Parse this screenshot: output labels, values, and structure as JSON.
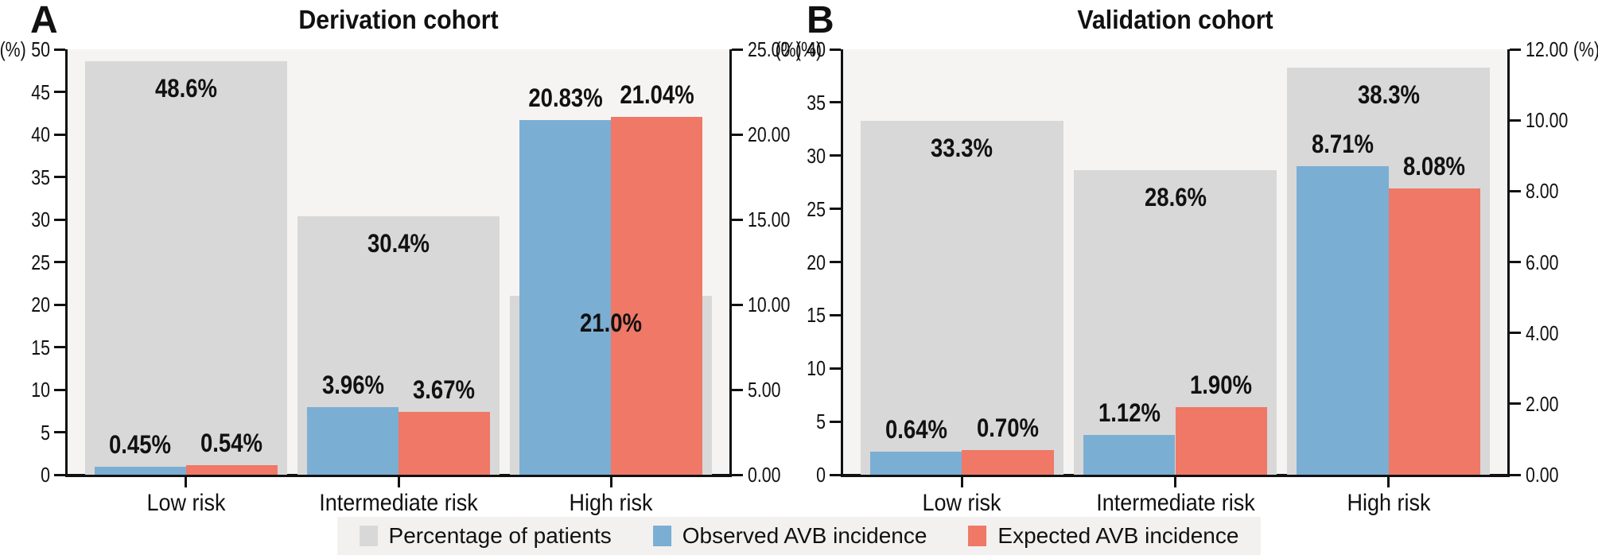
{
  "figure": {
    "colors": {
      "patients": "#d8d8d8",
      "observed": "#7baed3",
      "expected": "#ef7866",
      "plot_bg": "#f5f4f3",
      "legend_bg": "#f2f1f0",
      "axis": "#111111",
      "text": "#111111"
    },
    "legend": [
      {
        "key": "patients",
        "label": "Percentage of patients"
      },
      {
        "key": "observed",
        "label": "Observed AVB incidence"
      },
      {
        "key": "expected",
        "label": "Expected AVB incidence"
      }
    ],
    "legend_position": "bottom-center"
  },
  "chart_data": [
    {
      "type": "bar",
      "panel_label": "A",
      "title": "Derivation cohort",
      "categories": [
        "Low risk",
        "Intermediate risk",
        "High risk"
      ],
      "grid": false,
      "left_axis": {
        "label": "(%)",
        "min": 0,
        "max": 50,
        "step": 5,
        "tick_labels": [
          "0",
          "5",
          "10",
          "15",
          "20",
          "25",
          "30",
          "35",
          "40",
          "45",
          "50"
        ]
      },
      "right_axis": {
        "label": "(%)",
        "min": 0,
        "max": 25,
        "step": 5,
        "tick_labels": [
          "0.00",
          "5.00",
          "10.00",
          "15.00",
          "20.00",
          "25.00"
        ]
      },
      "series": [
        {
          "key": "patients",
          "name": "Percentage of patients",
          "axis": "left",
          "values": [
            48.6,
            30.4,
            21.0
          ],
          "labels": [
            "48.6%",
            "30.4%",
            "21.0%"
          ]
        },
        {
          "key": "observed",
          "name": "Observed AVB incidence",
          "axis": "right",
          "values": [
            0.45,
            3.96,
            20.83
          ],
          "labels": [
            "0.45%",
            "3.96%",
            "20.83%"
          ]
        },
        {
          "key": "expected",
          "name": "Expected AVB incidence",
          "axis": "right",
          "values": [
            0.54,
            3.67,
            21.04
          ],
          "labels": [
            "0.54%",
            "3.67%",
            "21.04%"
          ]
        }
      ]
    },
    {
      "type": "bar",
      "panel_label": "B",
      "title": "Validation cohort",
      "categories": [
        "Low risk",
        "Intermediate risk",
        "High risk"
      ],
      "grid": false,
      "left_axis": {
        "label": "(%)",
        "min": 0,
        "max": 40,
        "step": 5,
        "tick_labels": [
          "0",
          "5",
          "10",
          "15",
          "20",
          "25",
          "30",
          "35",
          "40"
        ]
      },
      "right_axis": {
        "label": "(%)",
        "min": 0,
        "max": 12,
        "step": 2,
        "tick_labels": [
          "0.00",
          "2.00",
          "4.00",
          "6.00",
          "8.00",
          "10.00",
          "12.00"
        ]
      },
      "series": [
        {
          "key": "patients",
          "name": "Percentage of patients",
          "axis": "left",
          "values": [
            33.3,
            28.6,
            38.3
          ],
          "labels": [
            "33.3%",
            "28.6%",
            "38.3%"
          ]
        },
        {
          "key": "observed",
          "name": "Observed AVB incidence",
          "axis": "right",
          "values": [
            0.64,
            1.12,
            8.71
          ],
          "labels": [
            "0.64%",
            "1.12%",
            "8.71%"
          ]
        },
        {
          "key": "expected",
          "name": "Expected AVB incidence",
          "axis": "right",
          "values": [
            0.7,
            1.9,
            8.08
          ],
          "labels": [
            "0.70%",
            "1.90%",
            "8.08%"
          ]
        }
      ]
    }
  ]
}
